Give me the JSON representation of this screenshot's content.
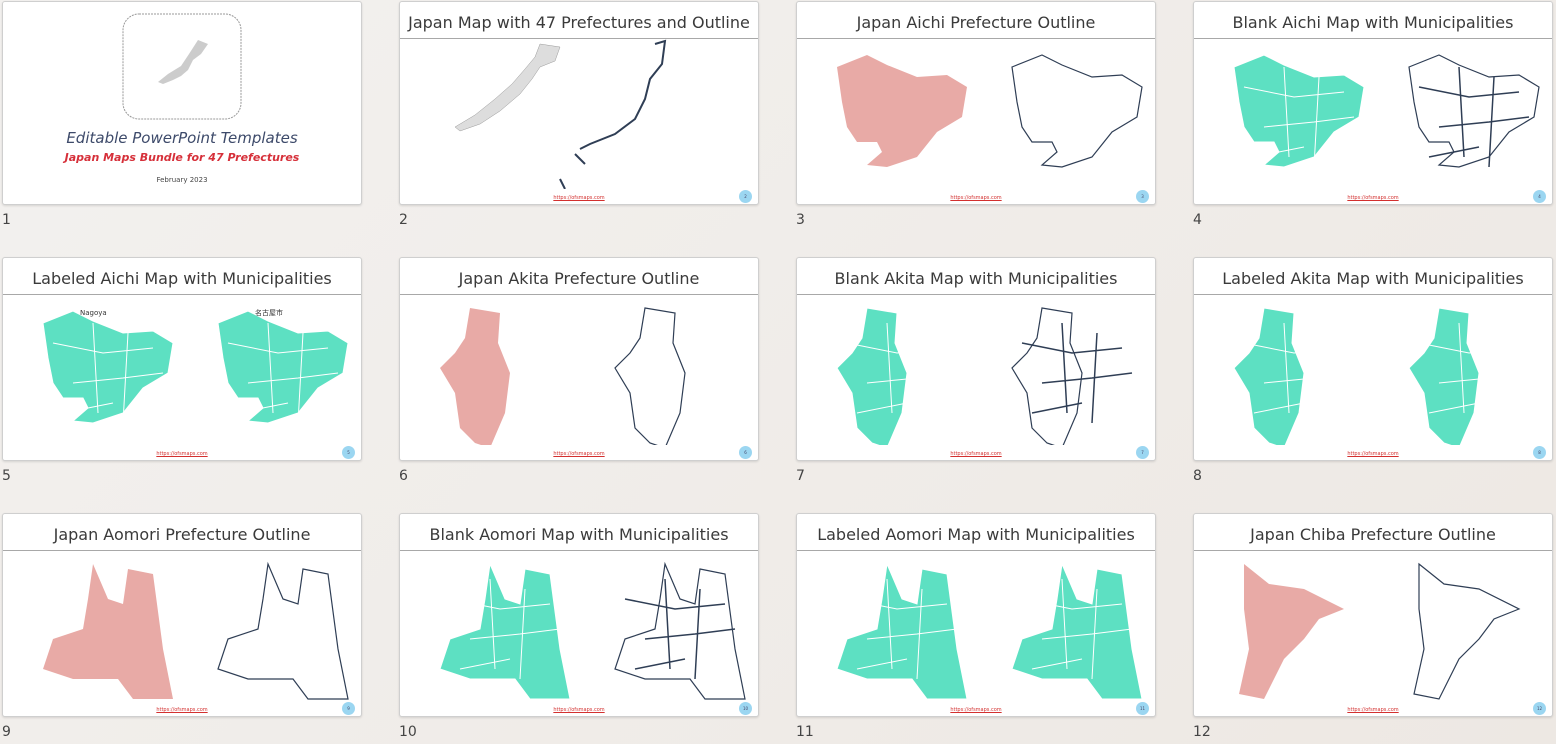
{
  "cover": {
    "title": "Editable PowerPoint Templates",
    "subtitle": "Japan Maps Bundle for 47 Prefectures",
    "date": "February 2023"
  },
  "footer_url": "https://ofsmaps.com",
  "slides": [
    {
      "number": 1
    },
    {
      "number": 2,
      "title": "Japan Map with 47 Prefectures and Outline"
    },
    {
      "number": 3,
      "title": "Japan Aichi Prefecture Outline"
    },
    {
      "number": 4,
      "title": "Blank Aichi Map with Municipalities"
    },
    {
      "number": 5,
      "title": "Labeled Aichi Map with Municipalities",
      "labels": [
        "Nagoya",
        "名古屋市"
      ]
    },
    {
      "number": 6,
      "title": "Japan Akita Prefecture Outline"
    },
    {
      "number": 7,
      "title": "Blank Akita Map with Municipalities"
    },
    {
      "number": 8,
      "title": "Labeled Akita Map with Municipalities"
    },
    {
      "number": 9,
      "title": "Japan Aomori Prefecture Outline"
    },
    {
      "number": 10,
      "title": "Blank Aomori Map with Municipalities"
    },
    {
      "number": 11,
      "title": "Labeled Aomori Map with Municipalities"
    },
    {
      "number": 12,
      "title": "Japan Chiba Prefecture Outline"
    }
  ]
}
